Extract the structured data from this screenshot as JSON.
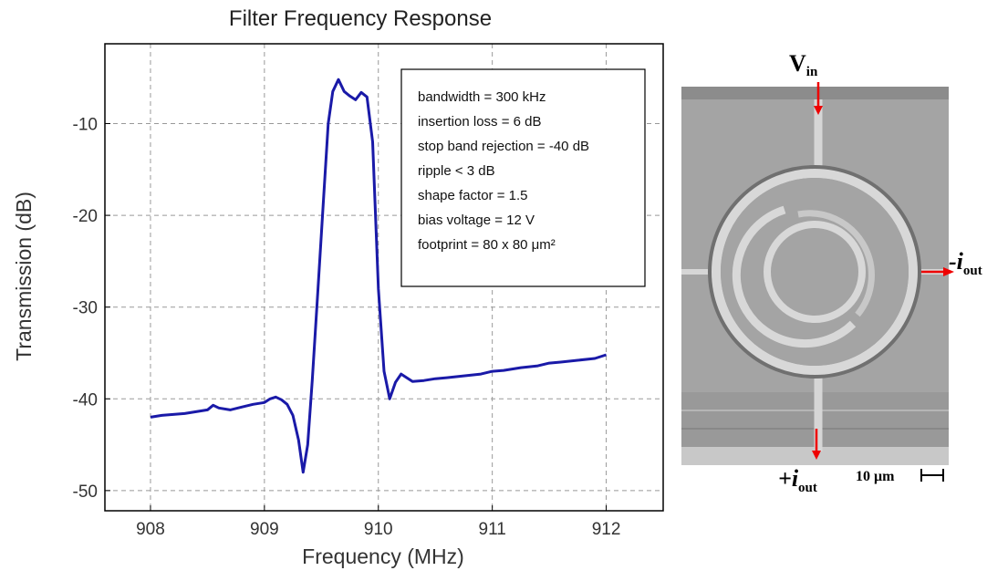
{
  "chart_data": {
    "type": "line",
    "title": "Filter Frequency Response",
    "x_label": "Frequency (MHz)",
    "y_label": "Transmission (dB)",
    "xlim": [
      907.6,
      912.5
    ],
    "ylim": [
      -52.2,
      -1.3
    ],
    "xticks": [
      908,
      909,
      910,
      911,
      912
    ],
    "yticks": [
      -10,
      -20,
      -30,
      -40,
      -50
    ],
    "grid": true,
    "x": [
      908.0,
      908.1,
      908.2,
      908.3,
      908.4,
      908.5,
      908.55,
      908.6,
      908.7,
      908.8,
      908.9,
      909.0,
      909.05,
      909.1,
      909.15,
      909.2,
      909.25,
      909.3,
      909.34,
      909.38,
      909.42,
      909.47,
      909.52,
      909.56,
      909.6,
      909.65,
      909.7,
      909.75,
      909.8,
      909.85,
      909.9,
      909.95,
      910.0,
      910.05,
      910.1,
      910.15,
      910.2,
      910.3,
      910.4,
      910.5,
      910.6,
      910.75,
      910.9,
      911.0,
      911.1,
      911.25,
      911.4,
      911.5,
      911.6,
      911.75,
      911.9,
      912.0
    ],
    "series": [
      {
        "name": "Transmission",
        "color": "#1a1aa8",
        "values": [
          -42,
          -41.8,
          -41.7,
          -41.6,
          -41.4,
          -41.2,
          -40.7,
          -41.0,
          -41.2,
          -40.9,
          -40.6,
          -40.4,
          -40.0,
          -39.8,
          -40.1,
          -40.6,
          -41.8,
          -44.5,
          -48,
          -45,
          -38,
          -28,
          -18,
          -10,
          -6.5,
          -5.2,
          -6.5,
          -7,
          -7.4,
          -6.6,
          -7.1,
          -12,
          -28,
          -37,
          -40,
          -38.2,
          -37.3,
          -38.1,
          -38.0,
          -37.8,
          -37.7,
          -37.5,
          -37.3,
          -37.0,
          -36.9,
          -36.6,
          -36.4,
          -36.1,
          -36.0,
          -35.8,
          -35.6,
          -35.2
        ]
      }
    ],
    "annotations": [
      "bandwidth = 300 kHz",
      "insertion loss = 6 dB",
      "stop band rejection = -40 dB",
      "ripple < 3 dB",
      "shape factor = 1.5",
      "bias voltage = 12 V",
      "footprint = 80 x 80 μm²"
    ],
    "micrograph_labels": {
      "v_in": {
        "main": "V",
        "sub": "in"
      },
      "minus_i_out": {
        "main": "-i",
        "sub": "out"
      },
      "plus_i_out": {
        "main": "+i",
        "sub": "out"
      },
      "scale_bar": "10 μm"
    }
  }
}
